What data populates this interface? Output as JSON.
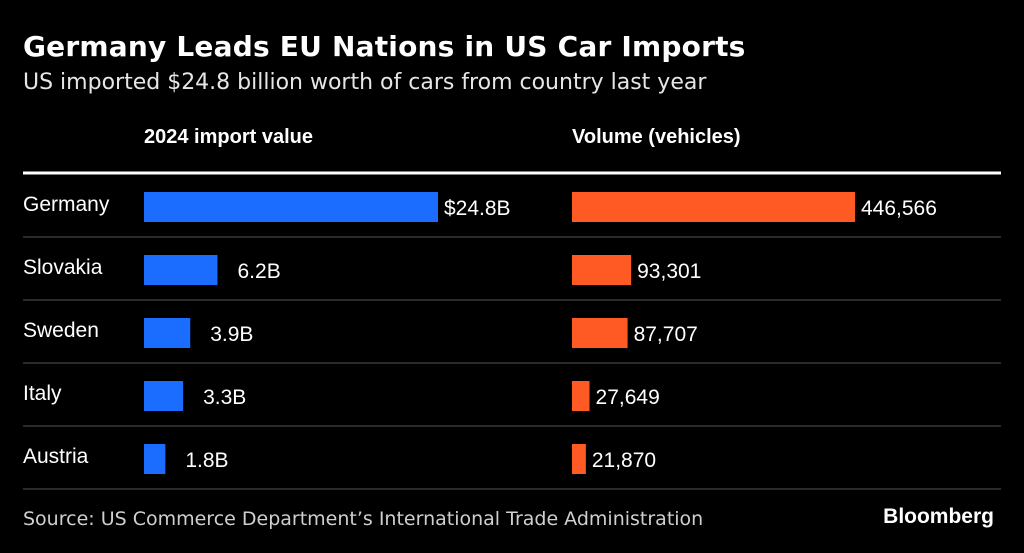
{
  "header": {
    "title": "Germany Leads EU Nations in US Car Imports",
    "subtitle": "US imported $24.8 billion worth of cars from country last year"
  },
  "footer": {
    "source": "Source: US Commerce Department’s International Trade Administration",
    "brand": "Bloomberg"
  },
  "colors": {
    "background": "#000000",
    "value_bar": "#1a6dff",
    "volume_bar": "#ff5a24",
    "divider": "#555555",
    "header_rule": "#ffffff"
  },
  "chart_data": [
    {
      "type": "bar",
      "orientation": "horizontal",
      "title": "2024 import value",
      "categories": [
        "Germany",
        "Slovakia",
        "Sweden",
        "Italy",
        "Austria"
      ],
      "values": [
        24.8,
        6.2,
        3.9,
        3.3,
        1.8
      ],
      "labels": [
        "$24.8B",
        "6.2B",
        "3.9B",
        "3.3B",
        "1.8B"
      ],
      "unit": "billion USD",
      "color": "#1a6dff"
    },
    {
      "type": "bar",
      "orientation": "horizontal",
      "title": "Volume (vehicles)",
      "categories": [
        "Germany",
        "Slovakia",
        "Sweden",
        "Italy",
        "Austria"
      ],
      "values": [
        446566,
        93301,
        87707,
        27649,
        21870
      ],
      "labels": [
        "446,566",
        "93,301",
        "87,707",
        "27,649",
        "21,870"
      ],
      "unit": "vehicles",
      "color": "#ff5a24"
    }
  ]
}
